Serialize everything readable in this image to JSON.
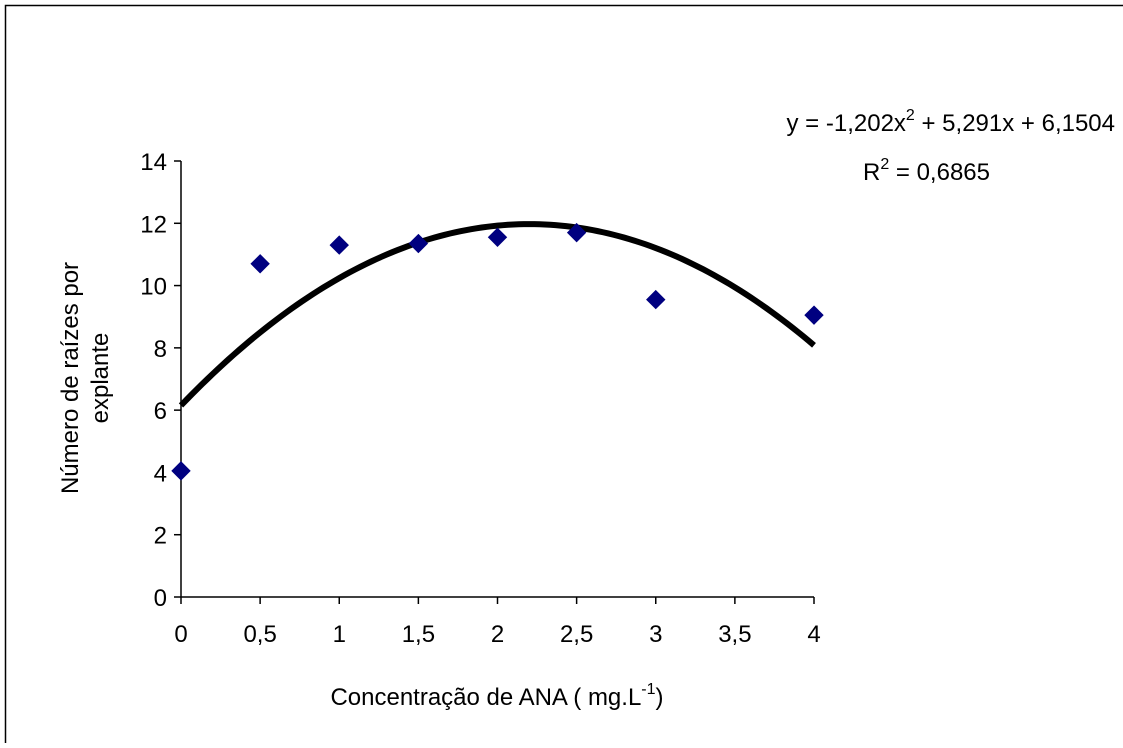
{
  "chart_data": {
    "type": "scatter",
    "xlabel": "Concentração de ANA ( mg.L",
    "xlabel_superscript": "-1",
    "xlabel_suffix": ")",
    "ylabel_line1": "Número de raízes por",
    "ylabel_line2": "explante",
    "xlim": [
      0,
      4
    ],
    "ylim": [
      0,
      14
    ],
    "x_ticks": [
      {
        "value": 0,
        "label": "0"
      },
      {
        "value": 0.5,
        "label": "0,5"
      },
      {
        "value": 1,
        "label": "1"
      },
      {
        "value": 1.5,
        "label": "1,5"
      },
      {
        "value": 2,
        "label": "2"
      },
      {
        "value": 2.5,
        "label": "2,5"
      },
      {
        "value": 3,
        "label": "3"
      },
      {
        "value": 3.5,
        "label": "3,5"
      },
      {
        "value": 4,
        "label": "4"
      }
    ],
    "y_ticks": [
      {
        "value": 0,
        "label": "0"
      },
      {
        "value": 2,
        "label": "2"
      },
      {
        "value": 4,
        "label": "4"
      },
      {
        "value": 6,
        "label": "6"
      },
      {
        "value": 8,
        "label": "8"
      },
      {
        "value": 10,
        "label": "10"
      },
      {
        "value": 12,
        "label": "12"
      },
      {
        "value": 14,
        "label": "14"
      }
    ],
    "grid": false,
    "series": [
      {
        "marker": "diamond",
        "color": "#000080",
        "x": [
          0,
          0.5,
          1,
          1.5,
          2,
          2.5,
          3,
          4
        ],
        "y": [
          4.05,
          10.7,
          11.3,
          11.35,
          11.55,
          11.7,
          9.55,
          9.05
        ]
      }
    ],
    "trendline": {
      "type": "polynomial",
      "coefficients": [
        -1.202,
        5.291,
        6.1504
      ],
      "x_range": [
        0,
        4
      ],
      "color": "#000000",
      "equation_parts": [
        "y = -1,202x",
        "2",
        " + 5,291x + 6,1504"
      ],
      "r2_parts": [
        "R",
        "2",
        " = 0,6865"
      ]
    }
  }
}
